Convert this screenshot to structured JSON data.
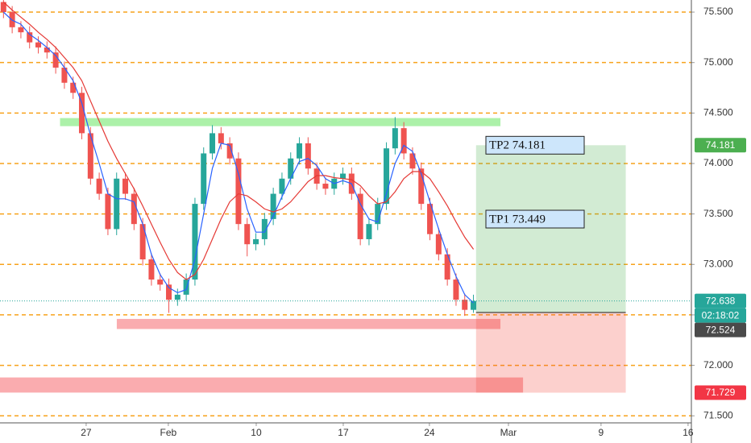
{
  "chart_data": {
    "type": "candlestick",
    "x": [
      -4.75,
      -4.25,
      -3.75,
      -3.25,
      -2.75,
      -2.25,
      -1.75,
      -1.25,
      -0.75,
      -0.25,
      0.25,
      0.75,
      1.25,
      1.75,
      2.25,
      2.75,
      3.25,
      3.75,
      4.25,
      4.75,
      5.25,
      5.75,
      6.25,
      6.75,
      7.25,
      7.75,
      8.25,
      8.75,
      9.25,
      9.75,
      10.25,
      10.75,
      11.25,
      11.75,
      12.25,
      12.75,
      13.25,
      13.75,
      14.25,
      14.75,
      15.25,
      15.75,
      16.25,
      16.75,
      17.25,
      17.75,
      18.25,
      18.75,
      19.25,
      19.75,
      20.25,
      20.75,
      21.25,
      21.75,
      22.25
    ],
    "open": [
      75.6,
      75.5,
      75.35,
      75.3,
      75.2,
      75.15,
      75.1,
      74.95,
      74.8,
      74.7,
      74.3,
      73.85,
      73.7,
      73.35,
      73.85,
      73.7,
      73.4,
      73.05,
      72.85,
      72.8,
      72.65,
      72.7,
      72.85,
      73.6,
      74.1,
      74.3,
      74.2,
      74.05,
      73.4,
      73.2,
      73.25,
      73.45,
      73.7,
      73.85,
      74.05,
      74.2,
      73.95,
      73.8,
      73.75,
      73.85,
      73.9,
      73.7,
      73.25,
      73.4,
      73.6,
      74.15,
      74.35,
      74.1,
      73.95,
      73.6,
      73.3,
      73.1,
      72.85,
      72.65,
      72.55
    ],
    "high": [
      75.66,
      75.56,
      75.41,
      75.36,
      75.26,
      75.21,
      75.16,
      75.01,
      74.86,
      74.76,
      74.36,
      73.91,
      73.76,
      73.91,
      73.91,
      73.76,
      73.46,
      73.11,
      72.91,
      72.86,
      72.76,
      72.91,
      73.66,
      74.16,
      74.38,
      74.36,
      74.26,
      74.11,
      73.46,
      73.31,
      73.51,
      73.76,
      73.91,
      74.11,
      74.26,
      74.26,
      74.01,
      73.86,
      73.91,
      73.96,
      73.96,
      73.76,
      73.46,
      73.66,
      74.21,
      74.46,
      74.41,
      74.16,
      74.01,
      73.66,
      73.36,
      73.16,
      72.91,
      72.71,
      72.7
    ],
    "low": [
      75.44,
      75.29,
      75.24,
      75.14,
      75.09,
      75.04,
      74.89,
      74.74,
      74.64,
      74.24,
      73.79,
      73.64,
      73.29,
      73.29,
      73.64,
      73.34,
      72.99,
      72.79,
      72.74,
      72.52,
      72.59,
      72.64,
      72.79,
      73.54,
      74.04,
      74.14,
      73.99,
      73.34,
      73.08,
      73.14,
      73.19,
      73.39,
      73.64,
      73.79,
      73.99,
      73.89,
      73.74,
      73.69,
      73.69,
      73.79,
      73.64,
      73.19,
      73.19,
      73.34,
      73.54,
      74.09,
      74.04,
      73.89,
      73.54,
      73.24,
      73.04,
      72.79,
      72.59,
      72.49,
      72.52
    ],
    "close": [
      75.5,
      75.35,
      75.3,
      75.2,
      75.15,
      75.1,
      74.95,
      74.8,
      74.7,
      74.3,
      73.85,
      73.7,
      73.35,
      73.85,
      73.7,
      73.4,
      73.05,
      72.85,
      72.8,
      72.65,
      72.7,
      72.85,
      73.6,
      74.1,
      74.3,
      74.2,
      74.05,
      73.4,
      73.2,
      73.25,
      73.45,
      73.7,
      73.85,
      74.05,
      74.2,
      73.95,
      73.8,
      73.75,
      73.85,
      73.9,
      73.7,
      73.25,
      73.4,
      73.6,
      74.15,
      74.35,
      74.1,
      73.95,
      73.6,
      73.3,
      73.1,
      72.85,
      72.65,
      72.55,
      72.638
    ],
    "up_color": "#26a69a",
    "down_color": "#ef5350",
    "lines": [
      {
        "color": "#2962ff",
        "values": [
          75.5,
          75.42,
          75.38,
          75.28,
          75.22,
          75.15,
          75.07,
          74.95,
          74.82,
          74.6,
          74.28,
          74.0,
          73.7,
          73.65,
          73.65,
          73.62,
          73.4,
          73.1,
          72.9,
          72.77,
          72.72,
          72.75,
          73.05,
          73.5,
          73.95,
          74.2,
          74.18,
          73.9,
          73.55,
          73.32,
          73.32,
          73.48,
          73.67,
          73.85,
          74.02,
          74.05,
          73.98,
          73.85,
          73.8,
          73.83,
          73.8,
          73.6,
          73.45,
          73.42,
          73.7,
          74.0,
          74.18,
          74.12,
          73.9,
          73.62,
          73.35,
          73.1,
          72.88,
          72.7,
          72.62
        ]
      },
      {
        "color": "#e53935",
        "values": [
          75.6,
          75.52,
          75.45,
          75.38,
          75.3,
          75.23,
          75.15,
          75.05,
          74.95,
          74.82,
          74.62,
          74.42,
          74.22,
          74.05,
          73.9,
          73.75,
          73.58,
          73.4,
          73.22,
          73.05,
          72.92,
          72.85,
          72.9,
          73.05,
          73.25,
          73.45,
          73.62,
          73.7,
          73.68,
          73.62,
          73.55,
          73.52,
          73.55,
          73.62,
          73.72,
          73.82,
          73.88,
          73.88,
          73.86,
          73.85,
          73.84,
          73.78,
          73.68,
          73.6,
          73.62,
          73.72,
          73.85,
          73.92,
          73.92,
          73.85,
          73.72,
          73.58,
          73.42,
          73.27,
          73.15
        ]
      }
    ],
    "xlim": [
      -4.95,
      34.77
    ],
    "ylim": [
      71.43,
      75.62
    ],
    "xticks": [
      {
        "value": 0,
        "label": "27"
      },
      {
        "value": 4.72,
        "label": "Feb"
      },
      {
        "value": 9.77,
        "label": "10"
      },
      {
        "value": 14.77,
        "label": "17"
      },
      {
        "value": 19.72,
        "label": "24"
      },
      {
        "value": 24.26,
        "label": "Mar"
      },
      {
        "value": 29.58,
        "label": "9"
      },
      {
        "value": 34.58,
        "label": "16"
      }
    ],
    "yticks": [
      {
        "value": 75.5,
        "label": "75.500"
      },
      {
        "value": 75.0,
        "label": "75.000"
      },
      {
        "value": 74.5,
        "label": "74.500"
      },
      {
        "value": 74.0,
        "label": "74.000"
      },
      {
        "value": 73.5,
        "label": "73.500"
      },
      {
        "value": 73.0,
        "label": "73.000"
      },
      {
        "value": 72.5,
        "label": null
      },
      {
        "value": 72.0,
        "label": "72.000"
      },
      {
        "value": 71.5,
        "label": "71.500"
      }
    ],
    "grid": true,
    "grid_color": "#f7a21b",
    "zones": [
      {
        "x": [
          -1.5,
          23.8
        ],
        "y": [
          74.37,
          74.45
        ],
        "color": "#a3f0a0"
      },
      {
        "x": [
          1.76,
          23.8
        ],
        "y": [
          72.36,
          72.46
        ],
        "color": "#f9a3a6"
      },
      {
        "x": [
          -4.95,
          25.1
        ],
        "y": [
          71.73,
          71.88
        ],
        "color": "#f9a3a6"
      }
    ],
    "position": {
      "x": [
        22.4,
        31.0
      ],
      "entry": 72.524,
      "target": 74.181,
      "stop": 71.729,
      "labels": [
        {
          "value": 74.181,
          "label": "TP2 74.181"
        },
        {
          "value": 73.449,
          "label": "TP1 73.449"
        }
      ]
    },
    "current_price": 72.638,
    "badges": [
      {
        "value": 74.181,
        "label": "74.181",
        "color": "#4caf50"
      },
      {
        "value": 72.638,
        "label": "72.638",
        "color": "#26a69a"
      },
      {
        "value": 72.524,
        "label": "72.524",
        "color": "#4a4a4a"
      },
      {
        "value": 71.729,
        "label": "71.729",
        "color": "#f23645"
      }
    ],
    "countdown": {
      "label": "02:18:02",
      "color": "#26a69a"
    }
  }
}
